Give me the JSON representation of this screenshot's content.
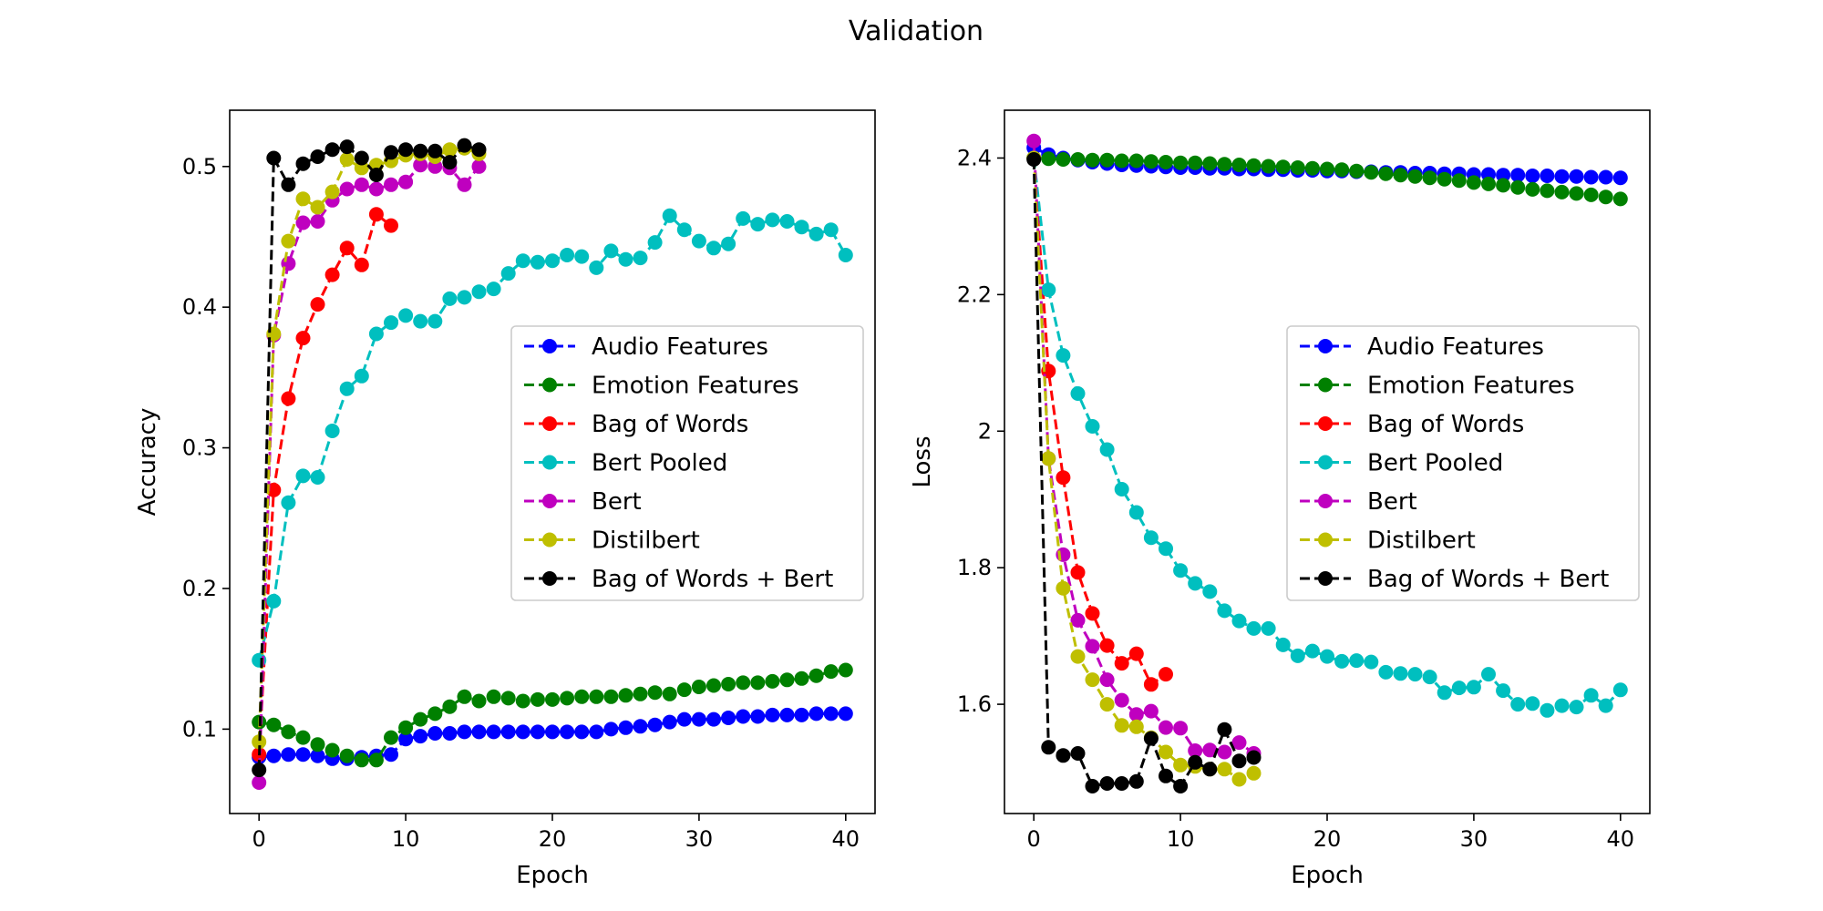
{
  "title": "Validation",
  "chart_data": [
    {
      "type": "line",
      "xlabel": "Epoch",
      "ylabel": "Accuracy",
      "xlim": [
        -2,
        42
      ],
      "ylim": [
        0.04,
        0.54
      ],
      "xticks": [
        0,
        10,
        20,
        30,
        40
      ],
      "yticks": [
        0.1,
        0.2,
        0.3,
        0.4,
        0.5
      ],
      "legend_position": "center-right",
      "series": [
        {
          "name": "Audio Features",
          "color": "#0000ff",
          "x": [
            0,
            1,
            2,
            3,
            4,
            5,
            6,
            7,
            8,
            9,
            10,
            11,
            12,
            13,
            14,
            15,
            16,
            17,
            18,
            19,
            20,
            21,
            22,
            23,
            24,
            25,
            26,
            27,
            28,
            29,
            30,
            31,
            32,
            33,
            34,
            35,
            36,
            37,
            38,
            39,
            40
          ],
          "y": [
            0.08,
            0.081,
            0.082,
            0.082,
            0.081,
            0.079,
            0.079,
            0.08,
            0.081,
            0.082,
            0.093,
            0.095,
            0.097,
            0.097,
            0.098,
            0.098,
            0.098,
            0.098,
            0.098,
            0.098,
            0.098,
            0.098,
            0.098,
            0.098,
            0.1,
            0.101,
            0.102,
            0.103,
            0.105,
            0.107,
            0.107,
            0.107,
            0.108,
            0.109,
            0.109,
            0.11,
            0.11,
            0.11,
            0.111,
            0.111,
            0.111
          ]
        },
        {
          "name": "Emotion Features",
          "color": "#008000",
          "x": [
            0,
            1,
            2,
            3,
            4,
            5,
            6,
            7,
            8,
            9,
            10,
            11,
            12,
            13,
            14,
            15,
            16,
            17,
            18,
            19,
            20,
            21,
            22,
            23,
            24,
            25,
            26,
            27,
            28,
            29,
            30,
            31,
            32,
            33,
            34,
            35,
            36,
            37,
            38,
            39,
            40
          ],
          "y": [
            0.105,
            0.103,
            0.098,
            0.094,
            0.089,
            0.085,
            0.081,
            0.078,
            0.078,
            0.094,
            0.101,
            0.107,
            0.111,
            0.116,
            0.123,
            0.12,
            0.123,
            0.122,
            0.12,
            0.121,
            0.121,
            0.122,
            0.123,
            0.123,
            0.123,
            0.124,
            0.125,
            0.126,
            0.125,
            0.128,
            0.13,
            0.131,
            0.132,
            0.133,
            0.133,
            0.134,
            0.135,
            0.136,
            0.138,
            0.141,
            0.142
          ]
        },
        {
          "name": "Bag of Words",
          "color": "#ff0000",
          "x": [
            0,
            1,
            2,
            3,
            4,
            5,
            6,
            7,
            8,
            9
          ],
          "y": [
            0.082,
            0.27,
            0.335,
            0.378,
            0.402,
            0.423,
            0.442,
            0.43,
            0.466,
            0.458
          ]
        },
        {
          "name": "Bert Pooled",
          "color": "#00bfbf",
          "x": [
            0,
            1,
            2,
            3,
            4,
            5,
            6,
            7,
            8,
            9,
            10,
            11,
            12,
            13,
            14,
            15,
            16,
            17,
            18,
            19,
            20,
            21,
            22,
            23,
            24,
            25,
            26,
            27,
            28,
            29,
            30,
            31,
            32,
            33,
            34,
            35,
            36,
            37,
            38,
            39,
            40
          ],
          "y": [
            0.149,
            0.191,
            0.261,
            0.28,
            0.279,
            0.312,
            0.342,
            0.351,
            0.381,
            0.389,
            0.394,
            0.39,
            0.39,
            0.406,
            0.407,
            0.411,
            0.413,
            0.424,
            0.433,
            0.432,
            0.433,
            0.437,
            0.436,
            0.428,
            0.44,
            0.434,
            0.435,
            0.446,
            0.465,
            0.455,
            0.447,
            0.442,
            0.445,
            0.463,
            0.459,
            0.462,
            0.461,
            0.457,
            0.452,
            0.455,
            0.437
          ]
        },
        {
          "name": "Bert",
          "color": "#bf00bf",
          "x": [
            0,
            1,
            2,
            3,
            4,
            5,
            6,
            7,
            8,
            9,
            10,
            11,
            12,
            13,
            14,
            15
          ],
          "y": [
            0.062,
            0.38,
            0.431,
            0.46,
            0.461,
            0.476,
            0.484,
            0.487,
            0.484,
            0.487,
            0.489,
            0.501,
            0.5,
            0.499,
            0.487,
            0.5
          ]
        },
        {
          "name": "Distilbert",
          "color": "#bfbf00",
          "x": [
            0,
            1,
            2,
            3,
            4,
            5,
            6,
            7,
            8,
            9,
            10,
            11,
            12,
            13,
            14,
            15
          ],
          "y": [
            0.091,
            0.381,
            0.447,
            0.477,
            0.471,
            0.482,
            0.505,
            0.499,
            0.501,
            0.504,
            0.508,
            0.509,
            0.507,
            0.512,
            0.513,
            0.509
          ]
        },
        {
          "name": "Bag of Words + Bert",
          "color": "#000000",
          "x": [
            0,
            1,
            2,
            3,
            4,
            5,
            6,
            7,
            8,
            9,
            10,
            11,
            12,
            13,
            14,
            15
          ],
          "y": [
            0.071,
            0.506,
            0.487,
            0.502,
            0.507,
            0.512,
            0.514,
            0.506,
            0.494,
            0.51,
            0.512,
            0.511,
            0.511,
            0.503,
            0.515,
            0.512
          ]
        }
      ]
    },
    {
      "type": "line",
      "xlabel": "Epoch",
      "ylabel": "Loss",
      "xlim": [
        -2,
        42
      ],
      "ylim": [
        1.44,
        2.47
      ],
      "xticks": [
        0,
        10,
        20,
        30,
        40
      ],
      "yticks": [
        1.6,
        1.8,
        2.0,
        2.2,
        2.4
      ],
      "legend_position": "center-right",
      "series": [
        {
          "name": "Audio Features",
          "color": "#0000ff",
          "x": [
            0,
            1,
            2,
            3,
            4,
            5,
            6,
            7,
            8,
            9,
            10,
            11,
            12,
            13,
            14,
            15,
            16,
            17,
            18,
            19,
            20,
            21,
            22,
            23,
            24,
            25,
            26,
            27,
            28,
            29,
            30,
            31,
            32,
            33,
            34,
            35,
            36,
            37,
            38,
            39,
            40
          ],
          "y": [
            2.415,
            2.405,
            2.4,
            2.397,
            2.394,
            2.392,
            2.39,
            2.389,
            2.388,
            2.387,
            2.386,
            2.386,
            2.385,
            2.385,
            2.384,
            2.384,
            2.383,
            2.383,
            2.382,
            2.382,
            2.381,
            2.381,
            2.38,
            2.38,
            2.379,
            2.379,
            2.378,
            2.378,
            2.377,
            2.377,
            2.376,
            2.376,
            2.375,
            2.375,
            2.374,
            2.374,
            2.373,
            2.373,
            2.372,
            2.372,
            2.371
          ]
        },
        {
          "name": "Emotion Features",
          "color": "#008000",
          "x": [
            0,
            1,
            2,
            3,
            4,
            5,
            6,
            7,
            8,
            9,
            10,
            11,
            12,
            13,
            14,
            15,
            16,
            17,
            18,
            19,
            20,
            21,
            22,
            23,
            24,
            25,
            26,
            27,
            28,
            29,
            30,
            31,
            32,
            33,
            34,
            35,
            36,
            37,
            38,
            39,
            40
          ],
          "y": [
            2.4,
            2.399,
            2.398,
            2.398,
            2.397,
            2.397,
            2.396,
            2.396,
            2.395,
            2.394,
            2.393,
            2.393,
            2.392,
            2.391,
            2.39,
            2.389,
            2.388,
            2.387,
            2.386,
            2.385,
            2.384,
            2.383,
            2.381,
            2.379,
            2.377,
            2.375,
            2.373,
            2.371,
            2.369,
            2.367,
            2.364,
            2.362,
            2.36,
            2.357,
            2.354,
            2.352,
            2.35,
            2.348,
            2.346,
            2.343,
            2.34
          ]
        },
        {
          "name": "Bag of Words",
          "color": "#ff0000",
          "x": [
            0,
            1,
            2,
            3,
            4,
            5,
            6,
            7,
            8,
            9
          ],
          "y": [
            2.4,
            2.088,
            1.932,
            1.793,
            1.733,
            1.686,
            1.66,
            1.674,
            1.629,
            1.644
          ]
        },
        {
          "name": "Bert Pooled",
          "color": "#00bfbf",
          "x": [
            0,
            1,
            2,
            3,
            4,
            5,
            6,
            7,
            8,
            9,
            10,
            11,
            12,
            13,
            14,
            15,
            16,
            17,
            18,
            19,
            20,
            21,
            22,
            23,
            24,
            25,
            26,
            27,
            28,
            29,
            30,
            31,
            32,
            33,
            34,
            35,
            36,
            37,
            38,
            39,
            40
          ],
          "y": [
            2.4,
            2.207,
            2.111,
            2.055,
            2.007,
            1.973,
            1.915,
            1.881,
            1.844,
            1.828,
            1.796,
            1.777,
            1.765,
            1.737,
            1.722,
            1.711,
            1.711,
            1.687,
            1.671,
            1.678,
            1.67,
            1.663,
            1.664,
            1.662,
            1.647,
            1.645,
            1.644,
            1.64,
            1.617,
            1.624,
            1.625,
            1.644,
            1.62,
            1.6,
            1.601,
            1.591,
            1.598,
            1.596,
            1.613,
            1.598,
            1.621
          ]
        },
        {
          "name": "Bert",
          "color": "#bf00bf",
          "x": [
            0,
            1,
            2,
            3,
            4,
            5,
            6,
            7,
            8,
            9,
            10,
            11,
            12,
            13,
            14,
            15
          ],
          "y": [
            2.425,
            1.96,
            1.819,
            1.723,
            1.685,
            1.636,
            1.606,
            1.585,
            1.59,
            1.566,
            1.565,
            1.532,
            1.533,
            1.53,
            1.544,
            1.528
          ]
        },
        {
          "name": "Distilbert",
          "color": "#bfbf00",
          "x": [
            0,
            1,
            2,
            3,
            4,
            5,
            6,
            7,
            8,
            9,
            10,
            11,
            12,
            13,
            14,
            15
          ],
          "y": [
            2.4,
            1.96,
            1.77,
            1.67,
            1.636,
            1.6,
            1.569,
            1.567,
            1.551,
            1.53,
            1.511,
            1.509,
            1.505,
            1.505,
            1.49,
            1.499
          ]
        },
        {
          "name": "Bag of Words + Bert",
          "color": "#000000",
          "x": [
            0,
            1,
            2,
            3,
            4,
            5,
            6,
            7,
            8,
            9,
            10,
            11,
            12,
            13,
            14,
            15
          ],
          "y": [
            2.398,
            1.537,
            1.525,
            1.528,
            1.48,
            1.484,
            1.484,
            1.487,
            1.55,
            1.495,
            1.48,
            1.515,
            1.505,
            1.563,
            1.517,
            1.522
          ]
        }
      ]
    }
  ]
}
